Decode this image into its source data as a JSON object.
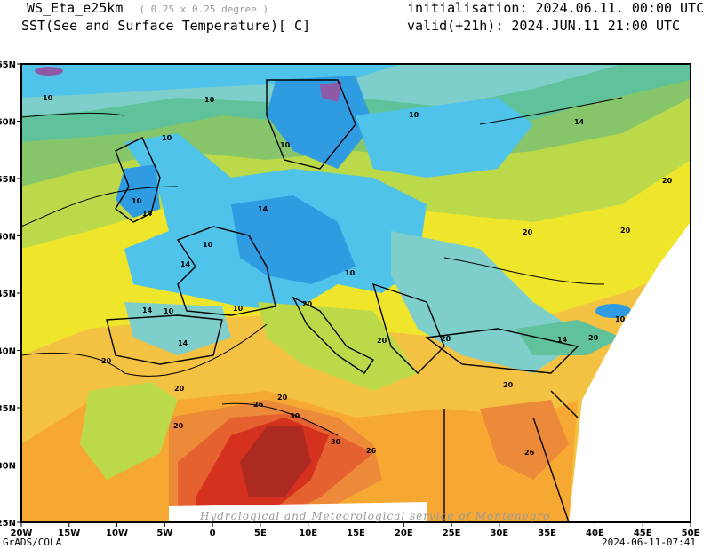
{
  "header": {
    "model": "WS_Eta_e25km",
    "resolution": "( 0.25 x 0.25 degree )",
    "variable": "SST(See and Surface Temperature)[ C]",
    "initialisation": "initialisation: 2024.06.11. 00:00 UTC",
    "valid": "valid(+21h): 2024.JUN.11 21:00 UTC"
  },
  "axes": {
    "lon_ticks": [
      "20W",
      "15W",
      "10W",
      "5W",
      "0",
      "5E",
      "10E",
      "15E",
      "20E",
      "25E",
      "30E",
      "35E",
      "40E",
      "45E",
      "50E"
    ],
    "lat_ticks": [
      "65N",
      "60N",
      "55N",
      "50N",
      "45N",
      "40N",
      "35N",
      "30N",
      "25N"
    ]
  },
  "contour_levels": [
    "10",
    "14",
    "20",
    "26",
    "30"
  ],
  "watermark": "Hydrological and Meteorological service of Montenegro",
  "footer": {
    "credit": "GrADS/COLA",
    "timestamp": "2024-06-11-07:41"
  },
  "colors": {
    "purple": "#8e5aa8",
    "blue": "#2f9be0",
    "lightblue": "#4fc3ea",
    "teal": "#7ecfcc",
    "seagreen": "#5fc29a",
    "green": "#86c56a",
    "yellowgreen": "#bcd94a",
    "yellow": "#efe62c",
    "darkyellow": "#e6d224",
    "lightorange": "#f4c242",
    "orange": "#f6a833",
    "darkorange": "#ec8a3a",
    "redorange": "#e5612f",
    "red": "#d6301f",
    "darkred": "#ad2a22"
  }
}
